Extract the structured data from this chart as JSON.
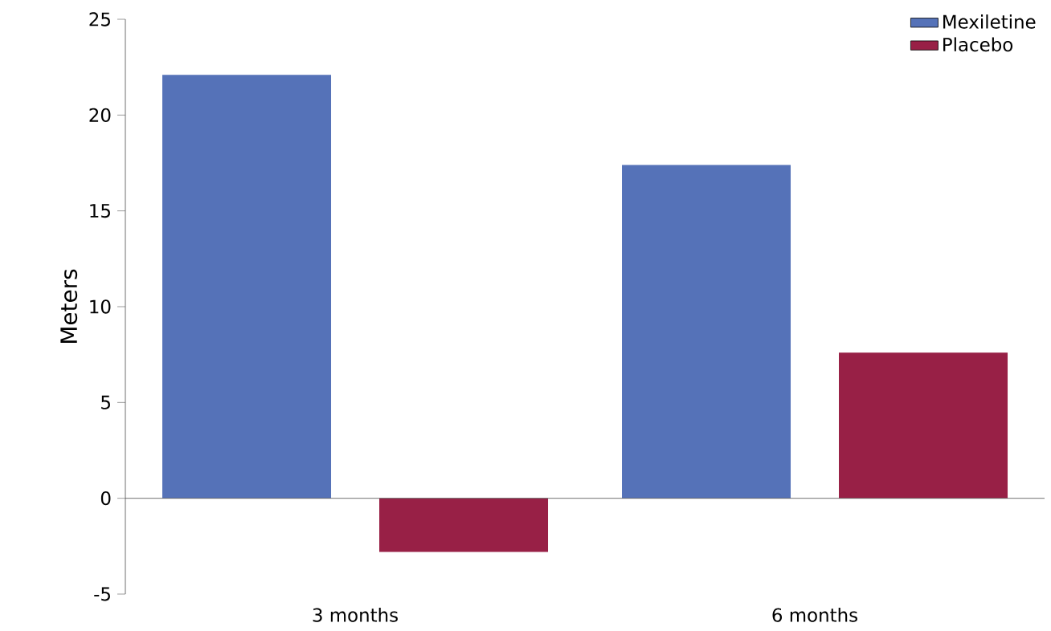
{
  "chart_data": {
    "type": "bar",
    "ylabel": "Meters",
    "categories": [
      "3 months",
      "6 months"
    ],
    "series": [
      {
        "name": "Mexiletine",
        "color": "#5572b8",
        "values": [
          22.1,
          17.4
        ]
      },
      {
        "name": "Placebo",
        "color": "#982046",
        "values": [
          -2.8,
          7.6
        ]
      }
    ],
    "ylim": [
      -5,
      25
    ],
    "yticks": [
      -5,
      0,
      5,
      10,
      15,
      20,
      25
    ],
    "legend": "top right"
  }
}
